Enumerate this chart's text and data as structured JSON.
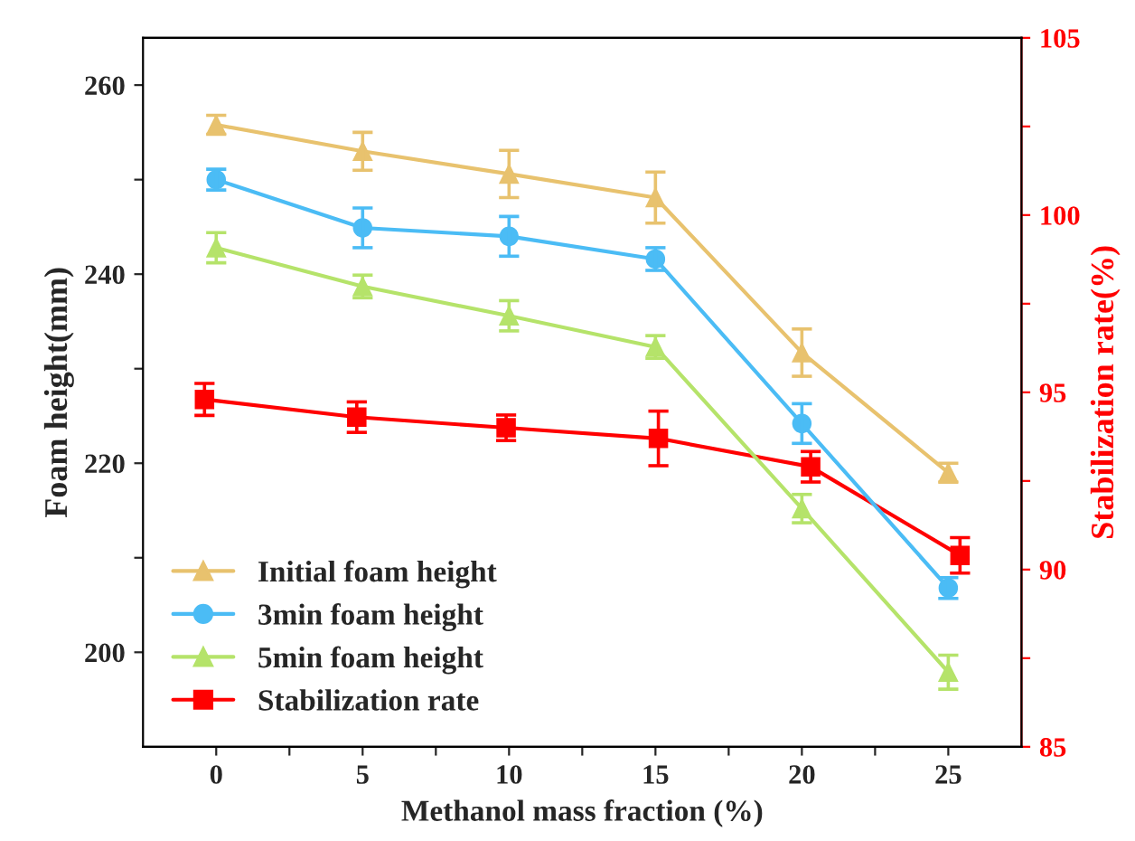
{
  "chart_data": {
    "type": "line",
    "xlabel": "Methanol mass fraction (%)",
    "ylabel": "Foam height(mm)",
    "y2label": "Stabilization rate(%)",
    "x": [
      0,
      5,
      10,
      15,
      20,
      25
    ],
    "xlim": [
      -2.5,
      27.5
    ],
    "xticks": [
      0,
      {
        "value": 2.5,
        "label": null
      },
      5,
      {
        "value": 7.5,
        "label": null
      },
      10,
      {
        "value": 12.5,
        "label": null
      },
      15,
      {
        "value": 17.5,
        "label": null
      },
      20,
      {
        "value": 22.5,
        "label": null
      },
      25
    ],
    "ylim": [
      190,
      265
    ],
    "yticks": [
      200,
      {
        "value": 210,
        "label": null
      },
      220,
      {
        "value": 230,
        "label": null
      },
      240,
      {
        "value": 250,
        "label": null
      },
      260
    ],
    "y2lim": [
      85,
      105
    ],
    "y2ticks": [
      85,
      {
        "value": 87.5,
        "label": null
      },
      90,
      {
        "value": 92.5,
        "label": null
      },
      95,
      {
        "value": 97.5,
        "label": null
      },
      100,
      {
        "value": 102.5,
        "label": null
      },
      105
    ],
    "series": [
      {
        "name": "Initial foam height",
        "color": "#e8c26e",
        "marker": "triangle",
        "values": [
          255.8,
          253.0,
          250.6,
          248.1,
          231.7,
          219.0
        ],
        "errors": [
          1.0,
          2.0,
          2.5,
          2.7,
          2.5,
          1.0
        ]
      },
      {
        "name": "3min foam height",
        "color": "#4bbcf5",
        "marker": "circle",
        "values": [
          250.0,
          244.9,
          244.0,
          241.6,
          224.2,
          206.8
        ],
        "errors": [
          1.1,
          2.1,
          2.1,
          1.2,
          2.1,
          1.1
        ]
      },
      {
        "name": "5min foam height",
        "color": "#b5e36a",
        "marker": "triangle",
        "values": [
          242.8,
          238.7,
          235.6,
          232.3,
          215.2,
          197.9
        ],
        "errors": [
          1.6,
          1.2,
          1.6,
          1.2,
          1.5,
          1.8
        ]
      },
      {
        "name": "Stabilization rate",
        "color": "#ff0000",
        "marker": "square",
        "axis": "y2",
        "x": [
          -0.4,
          4.8,
          9.9,
          15.1,
          20.3,
          25.4
        ],
        "values": [
          94.8,
          94.3,
          94.0,
          93.7,
          92.9,
          90.4
        ],
        "errors": [
          0.45,
          0.43,
          0.36,
          0.77,
          0.43,
          0.5
        ]
      }
    ],
    "legend": "bottom left",
    "grid": false
  }
}
